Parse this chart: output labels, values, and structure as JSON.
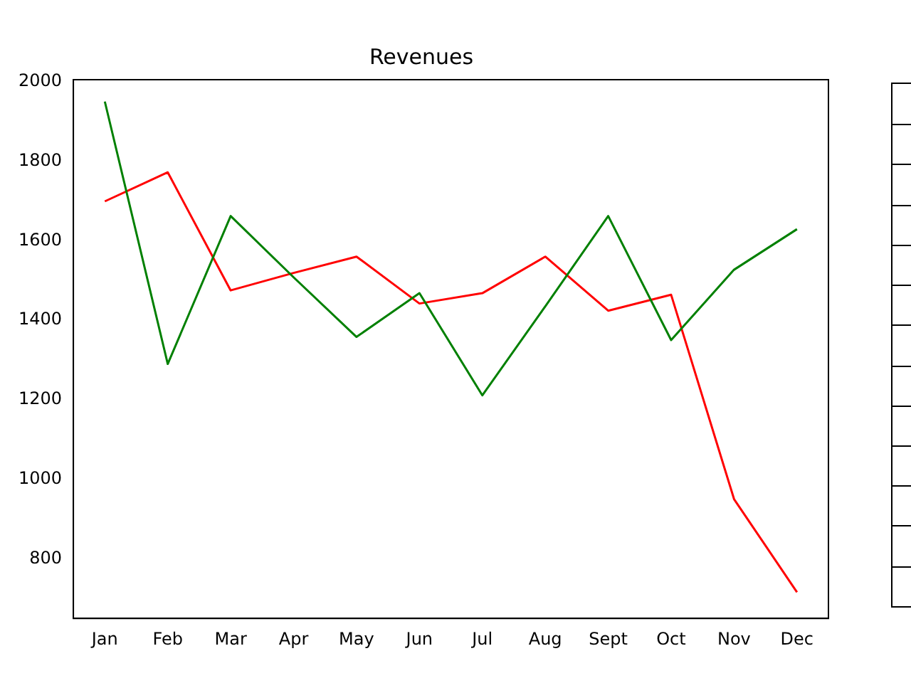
{
  "chart_data": {
    "type": "line",
    "title": "Revenues",
    "categories": [
      "Jan",
      "Feb",
      "Mar",
      "Apr",
      "May",
      "Jun",
      "Jul",
      "Aug",
      "Sept",
      "Oct",
      "Nov",
      "Dec"
    ],
    "series": [
      {
        "color": "#008000",
        "values": [
          1950,
          1290,
          1662,
          1508,
          1358,
          1468,
          1211,
          1435,
          1662,
          1350,
          1527,
          1629
        ]
      },
      {
        "color": "#ff0000",
        "values": [
          1699,
          1772,
          1475,
          1519,
          1560,
          1442,
          1468,
          1560,
          1424,
          1464,
          950,
          716
        ]
      }
    ],
    "ylim": [
      650,
      2005
    ],
    "yticks": [
      800,
      1000,
      1200,
      1400,
      1600,
      1800,
      2000
    ],
    "grid": false,
    "legend": false
  }
}
